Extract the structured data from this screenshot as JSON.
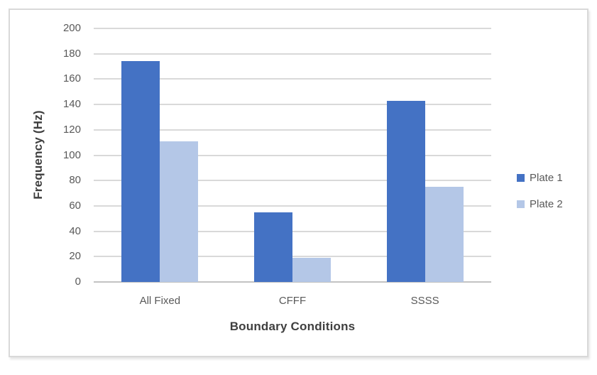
{
  "chart_data": {
    "type": "bar",
    "variant": "clustered-vertical",
    "title": "",
    "xlabel": "Boundary Conditions",
    "ylabel": "Frequency (Hz)",
    "categories": [
      "All Fixed",
      "CFFF",
      "SSSS"
    ],
    "series": [
      {
        "name": "Plate 1",
        "color": "#4472C4",
        "values": [
          174,
          55,
          143
        ]
      },
      {
        "name": "Plate 2",
        "color": "#B4C7E7",
        "values": [
          111,
          19,
          75
        ]
      }
    ],
    "ylim": [
      0,
      200
    ],
    "yticks": [
      0,
      20,
      40,
      60,
      80,
      100,
      120,
      140,
      160,
      180,
      200
    ],
    "grid": "horizontal",
    "legend_position": "right",
    "colors": {
      "gridline": "#D9D9D9",
      "axis_line": "#C3C3C3",
      "tick_label": "#595959",
      "axis_title": "#3F3F3F",
      "legend_text": "#595959",
      "chart_border": "#D9D9D9",
      "background": "#FFFFFF"
    }
  }
}
